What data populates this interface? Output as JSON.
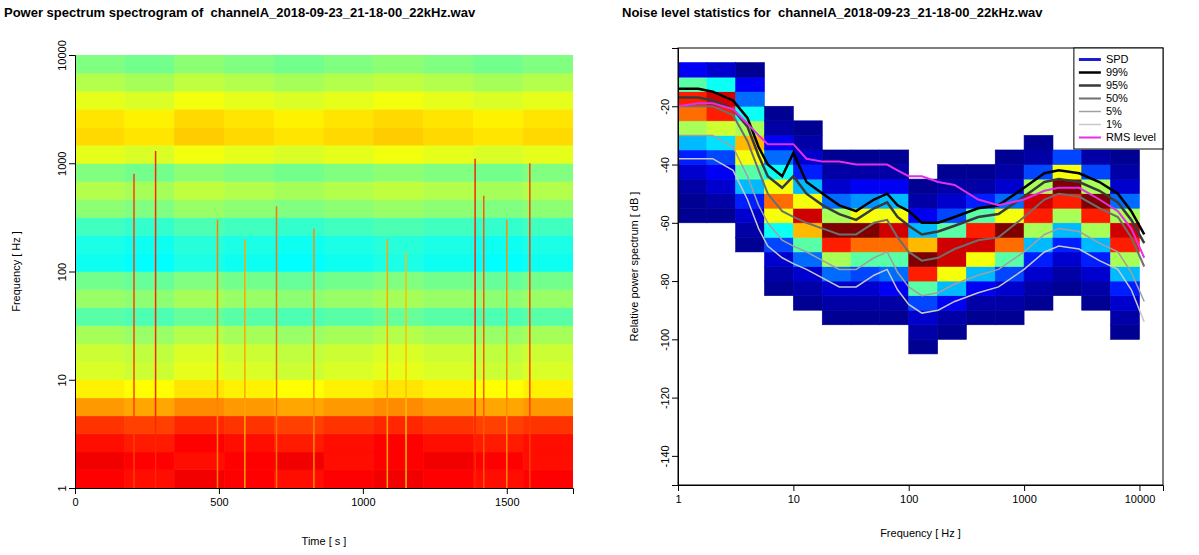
{
  "chart_data": [
    {
      "type": "heatmap",
      "title": "Power spectrum spectrogram of  channelA_2018-09-23_21-18-00_22kHz.wav",
      "x_label": "Time [ s ]",
      "y_label": "Frequency [ Hz ]",
      "log": "y",
      "xlim": [
        0,
        1730
      ],
      "ylim": [
        1,
        10000
      ],
      "xticks": [
        0,
        500,
        1000,
        1500
      ],
      "yticks": [
        1,
        10,
        100,
        1000,
        10000
      ],
      "time_edges": [
        0,
        173,
        346,
        519,
        692,
        865,
        1038,
        1211,
        1384,
        1557,
        1730
      ],
      "freq_edges": [
        1,
        1.47,
        2.15,
        3.16,
        4.64,
        6.81,
        10,
        14.7,
        21.5,
        31.6,
        46.4,
        68.1,
        100,
        147,
        215,
        316,
        464,
        681,
        1000,
        1470,
        2150,
        3160,
        4640,
        6810,
        10000
      ],
      "zlim": [
        -95,
        -15
      ],
      "cells": [
        [
          -25,
          -26,
          -24,
          -25,
          -26,
          -25,
          -24,
          -25,
          -26,
          -25
        ],
        [
          -24,
          -25,
          -26,
          -25,
          -24,
          -26,
          -25,
          -24,
          -25,
          -26
        ],
        [
          -26,
          -27,
          -25,
          -26,
          -27,
          -26,
          -25,
          -26,
          -27,
          -26
        ],
        [
          -29,
          -30,
          -28,
          -29,
          -30,
          -29,
          -28,
          -29,
          -30,
          -29
        ],
        [
          -37,
          -38,
          -36,
          -37,
          -38,
          -37,
          -36,
          -37,
          -38,
          -37
        ],
        [
          -44,
          -45,
          -43,
          -44,
          -45,
          -44,
          -43,
          -44,
          -45,
          -44
        ],
        [
          -48,
          -49,
          -47,
          -48,
          -49,
          -48,
          -47,
          -48,
          -49,
          -48
        ],
        [
          -49,
          -50,
          -48,
          -49,
          -50,
          -49,
          -48,
          -49,
          -50,
          -49
        ],
        [
          -52,
          -53,
          -51,
          -52,
          -53,
          -52,
          -51,
          -52,
          -53,
          -52
        ],
        [
          -58,
          -59,
          -57,
          -58,
          -59,
          -58,
          -57,
          -58,
          -59,
          -58
        ],
        [
          -53,
          -54,
          -52,
          -53,
          -54,
          -53,
          -52,
          -53,
          -54,
          -53
        ],
        [
          -56,
          -57,
          -55,
          -56,
          -57,
          -56,
          -55,
          -56,
          -57,
          -56
        ],
        [
          -64,
          -65,
          -63,
          -64,
          -65,
          -64,
          -63,
          -64,
          -65,
          -64
        ],
        [
          -63,
          -64,
          -62,
          -63,
          -64,
          -63,
          -62,
          -63,
          -64,
          -63
        ],
        [
          -60,
          -61,
          -59,
          -60,
          -61,
          -60,
          -59,
          -60,
          -61,
          -60
        ],
        [
          -54,
          -55,
          -53,
          -54,
          -55,
          -54,
          -53,
          -54,
          -55,
          -54
        ],
        [
          -51,
          -52,
          -50,
          -51,
          -52,
          -51,
          -50,
          -51,
          -52,
          -51
        ],
        [
          -55,
          -56,
          -54,
          -55,
          -56,
          -55,
          -54,
          -55,
          -56,
          -55
        ],
        [
          -47,
          -48,
          -46,
          -47,
          -48,
          -47,
          -46,
          -47,
          -48,
          -47
        ],
        [
          -42,
          -43,
          -41,
          -42,
          -43,
          -42,
          -41,
          -42,
          -43,
          -42
        ],
        [
          -43,
          -44,
          -42,
          -43,
          -44,
          -43,
          -42,
          -43,
          -44,
          -43
        ],
        [
          -47,
          -48,
          -46,
          -47,
          -48,
          -47,
          -46,
          -47,
          -48,
          -47
        ],
        [
          -51,
          -52,
          -50,
          -51,
          -52,
          -51,
          -50,
          -51,
          -52,
          -51
        ],
        [
          -55,
          -56,
          -54,
          -55,
          -56,
          -55,
          -54,
          -55,
          -56,
          -55
        ]
      ],
      "events": {
        "times": [
          205,
          280,
          495,
          590,
          700,
          830,
          1085,
          1150,
          1390,
          1420,
          1500,
          1580
        ],
        "fmax": [
          800,
          1300,
          300,
          200,
          400,
          250,
          200,
          150,
          1100,
          500,
          300,
          1000
        ],
        "levels": [
          -30,
          -28,
          -35,
          -38,
          -34,
          -36,
          -38,
          -40,
          -28,
          -32,
          -36,
          -30
        ]
      }
    },
    {
      "type": "line",
      "title": "Noise level statistics for  channelA_2018-09-23_21-18-00_22kHz.wav",
      "x_label": "Frequency [ Hz ]",
      "y_label": "Relative power spectrum [ dB ]",
      "log": "x",
      "xlim": [
        1,
        16000
      ],
      "ylim": [
        -150,
        0
      ],
      "xticks": [
        1,
        10,
        100,
        1000,
        10000
      ],
      "yticks": [
        -20,
        -40,
        -60,
        -80,
        -100,
        -120,
        -140
      ],
      "legend": "top-right",
      "spd": {
        "name": "SPD",
        "color": "#1c1cd0",
        "freq_edges": [
          1,
          1.78,
          3.16,
          5.62,
          10,
          17.8,
          31.6,
          56.2,
          100,
          178,
          316,
          562,
          1000,
          1780,
          3160,
          5620,
          10000
        ],
        "db_edges": [
          -105,
          -100,
          -95,
          -90,
          -85,
          -80,
          -75,
          -70,
          -65,
          -60,
          -55,
          -50,
          -45,
          -40,
          -35,
          -30,
          -25,
          -20,
          -15,
          -10,
          -5
        ],
        "zlim": [
          0,
          26
        ],
        "density": [
          [
            0,
            0,
            0,
            0,
            0,
            0,
            0,
            0,
            0,
            0.5,
            0.5,
            1,
            2,
            4,
            8,
            14,
            20,
            22,
            12,
            3
          ],
          [
            0,
            0,
            0,
            0,
            0,
            0,
            0,
            0,
            0,
            0.5,
            1,
            2,
            3,
            5,
            9,
            15,
            22,
            24,
            10,
            2
          ],
          [
            0,
            0,
            0,
            0,
            0,
            0,
            0,
            0.5,
            1,
            2,
            4,
            8,
            12,
            16,
            18,
            14,
            10,
            6,
            3,
            0.5
          ],
          [
            0,
            0,
            0,
            0,
            0.5,
            1,
            2,
            5,
            10,
            16,
            20,
            16,
            10,
            6,
            3,
            1,
            0.5,
            0,
            0,
            0
          ],
          [
            0,
            0,
            0,
            0.5,
            1,
            2,
            6,
            12,
            18,
            24,
            16,
            8,
            4,
            2,
            1,
            0.5,
            0,
            0,
            0,
            0
          ],
          [
            0,
            0,
            0.5,
            1,
            2,
            6,
            14,
            22,
            26,
            14,
            6,
            2,
            1,
            0.5,
            0,
            0,
            0,
            0,
            0,
            0
          ],
          [
            0,
            0,
            0.5,
            1,
            2,
            5,
            12,
            20,
            26,
            16,
            7,
            3,
            1,
            0.5,
            0,
            0,
            0,
            0,
            0,
            0
          ],
          [
            0,
            0,
            0.5,
            1,
            3,
            6,
            12,
            20,
            24,
            16,
            8,
            3,
            1,
            0.5,
            0,
            0,
            0,
            0,
            0,
            0
          ],
          [
            0.5,
            1,
            2,
            5,
            12,
            22,
            26,
            18,
            8,
            3,
            1,
            0.5,
            0,
            0,
            0,
            0,
            0,
            0,
            0,
            0
          ],
          [
            0,
            0.5,
            1,
            3,
            8,
            16,
            24,
            24,
            12,
            5,
            2,
            1,
            0.5,
            0,
            0,
            0,
            0,
            0,
            0,
            0
          ],
          [
            0,
            0,
            0.5,
            1,
            3,
            8,
            16,
            24,
            22,
            12,
            4,
            1,
            0.5,
            0,
            0,
            0,
            0,
            0,
            0,
            0
          ],
          [
            0,
            0,
            0.5,
            1,
            2,
            5,
            12,
            20,
            26,
            16,
            6,
            2,
            1,
            0.5,
            0,
            0,
            0,
            0,
            0,
            0
          ],
          [
            0,
            0,
            0,
            0.5,
            1,
            2,
            4,
            8,
            14,
            22,
            24,
            14,
            5,
            1,
            0.5,
            0,
            0,
            0,
            0,
            0
          ],
          [
            0,
            0,
            0,
            0,
            0.5,
            1,
            2,
            4,
            8,
            14,
            22,
            26,
            16,
            5,
            0,
            0,
            0,
            0,
            0,
            0
          ],
          [
            0,
            0,
            0,
            0.5,
            1,
            2,
            4,
            8,
            14,
            22,
            26,
            14,
            5,
            1,
            0,
            0,
            0,
            0,
            0,
            0
          ],
          [
            0,
            0.5,
            1,
            2,
            4,
            8,
            14,
            22,
            24,
            14,
            6,
            2,
            1,
            0.5,
            0,
            0,
            0,
            0,
            0,
            0
          ]
        ]
      },
      "x": [
        1,
        1.5,
        2,
        3,
        4,
        5,
        6,
        8,
        10,
        13,
        18,
        25,
        35,
        50,
        65,
        80,
        100,
        130,
        180,
        250,
        400,
        600,
        1000,
        1500,
        2000,
        3000,
        4500,
        6500,
        8500,
        11000
      ],
      "series": [
        {
          "name": "99%",
          "color": "#000000",
          "values": [
            -14,
            -14,
            -15,
            -18,
            -24,
            -34,
            -40,
            -44,
            -36,
            -46,
            -50,
            -54,
            -56,
            -52,
            -50,
            -54,
            -56,
            -60,
            -60,
            -58,
            -55,
            -54,
            -48,
            -43,
            -42,
            -43,
            -46,
            -50,
            -56,
            -64
          ]
        },
        {
          "name": "95%",
          "color": "#3a3a3a",
          "values": [
            -17,
            -17,
            -18,
            -21,
            -27,
            -37,
            -44,
            -48,
            -44,
            -50,
            -54,
            -57,
            -59,
            -55,
            -53,
            -58,
            -61,
            -64,
            -63,
            -61,
            -58,
            -57,
            -51,
            -46,
            -45,
            -46,
            -49,
            -53,
            -59,
            -67
          ]
        },
        {
          "name": "50%",
          "color": "#6e6e6e",
          "values": [
            -20,
            -20,
            -20,
            -23,
            -32,
            -42,
            -50,
            -56,
            -58,
            -60,
            -62,
            -64,
            -64,
            -60,
            -59,
            -65,
            -70,
            -73,
            -72,
            -69,
            -66,
            -65,
            -58,
            -52,
            -50,
            -51,
            -55,
            -58,
            -65,
            -75
          ]
        },
        {
          "name": "5%",
          "color": "#a0a0a0",
          "values": [
            -30,
            -30,
            -30,
            -34,
            -44,
            -54,
            -60,
            -66,
            -68,
            -70,
            -73,
            -76,
            -76,
            -72,
            -70,
            -77,
            -82,
            -85,
            -84,
            -81,
            -78,
            -76,
            -70,
            -64,
            -62,
            -63,
            -67,
            -70,
            -77,
            -87
          ]
        },
        {
          "name": "1%",
          "color": "#c8c8c8",
          "values": [
            -38,
            -38,
            -38,
            -42,
            -52,
            -62,
            -68,
            -72,
            -74,
            -76,
            -79,
            -82,
            -82,
            -78,
            -76,
            -83,
            -88,
            -91,
            -90,
            -87,
            -84,
            -82,
            -76,
            -70,
            -68,
            -69,
            -73,
            -76,
            -83,
            -94
          ]
        },
        {
          "name": "RMS level",
          "color": "#e62ee6",
          "values": [
            -20,
            -19,
            -19,
            -21,
            -26,
            -30,
            -33,
            -33,
            -33,
            -38,
            -39,
            -39,
            -40,
            -40,
            -40,
            -42,
            -44,
            -44,
            -46,
            -47,
            -52,
            -54,
            -52,
            -49,
            -48,
            -48,
            -52,
            -56,
            -62,
            -72
          ]
        }
      ]
    }
  ]
}
